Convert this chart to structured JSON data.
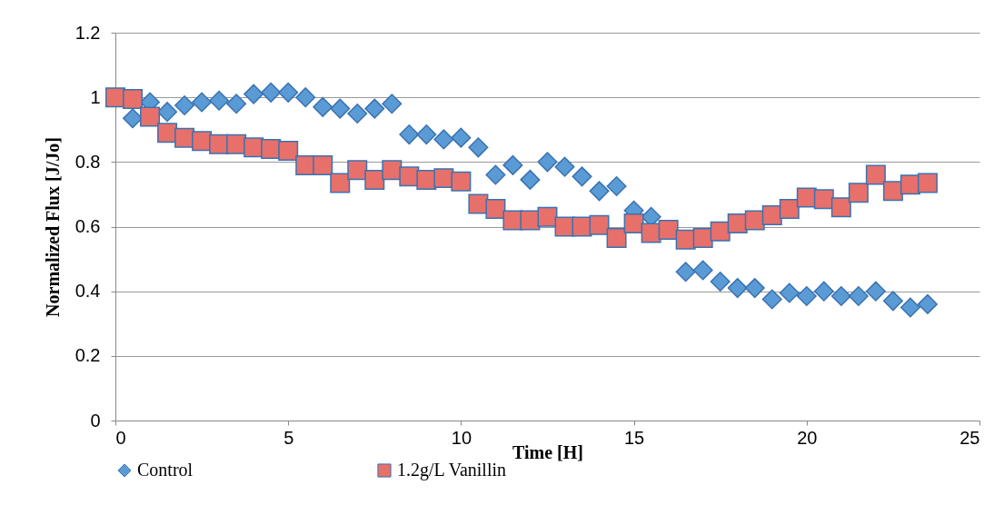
{
  "chart_data": {
    "type": "scatter",
    "xlabel": "Time [H]",
    "ylabel": "Normalized Flux [J/Jo]",
    "x": [
      0,
      0.5,
      1,
      1.5,
      2,
      2.5,
      3,
      3.5,
      4,
      4.5,
      5,
      5.5,
      6,
      6.5,
      7,
      7.5,
      8,
      8.5,
      9,
      9.5,
      10,
      10.5,
      11,
      11.5,
      12,
      12.5,
      13,
      13.5,
      14,
      14.5,
      15,
      15.5,
      16,
      16.5,
      17,
      17.5,
      18,
      18.5,
      19,
      19.5,
      20,
      20.5,
      21,
      21.5,
      22,
      22.5,
      23,
      23.5
    ],
    "series": [
      {
        "name": "Control",
        "color": "#5b9bd5",
        "marker": "diamond",
        "values": [
          null,
          0.935,
          0.985,
          0.955,
          0.975,
          0.985,
          0.99,
          0.98,
          1.01,
          1.015,
          1.015,
          1.0,
          0.97,
          0.965,
          0.95,
          0.965,
          0.98,
          0.885,
          0.885,
          0.87,
          0.875,
          0.845,
          0.76,
          0.79,
          0.745,
          0.8,
          0.785,
          0.755,
          0.71,
          0.725,
          0.65,
          0.63,
          null,
          0.46,
          0.465,
          0.43,
          0.41,
          0.41,
          0.375,
          0.395,
          0.385,
          0.4,
          0.385,
          0.385,
          0.4,
          0.37,
          0.35,
          0.36
        ]
      },
      {
        "name": "1.2g/L Vanillin",
        "color": "#e8706a",
        "marker": "square",
        "values": [
          1.0,
          0.995,
          0.94,
          0.89,
          0.875,
          0.865,
          0.855,
          0.855,
          0.845,
          0.84,
          0.835,
          0.79,
          0.79,
          0.735,
          0.775,
          0.745,
          0.775,
          0.755,
          0.745,
          0.75,
          0.74,
          0.67,
          0.655,
          0.62,
          0.62,
          0.63,
          0.6,
          0.6,
          0.605,
          0.565,
          0.61,
          0.58,
          0.59,
          0.56,
          0.565,
          0.585,
          0.61,
          0.62,
          0.635,
          0.655,
          0.69,
          0.685,
          0.66,
          0.705,
          0.76,
          0.71,
          0.73,
          0.735
        ]
      }
    ],
    "xlim": [
      0,
      25
    ],
    "xticks": [
      0,
      5,
      10,
      15,
      20,
      25
    ],
    "ylim": [
      0,
      1.2
    ],
    "yticks": [
      0,
      0.2,
      0.4,
      0.6,
      0.8,
      1,
      1.2
    ],
    "grid": "y",
    "legend": "bottom"
  }
}
